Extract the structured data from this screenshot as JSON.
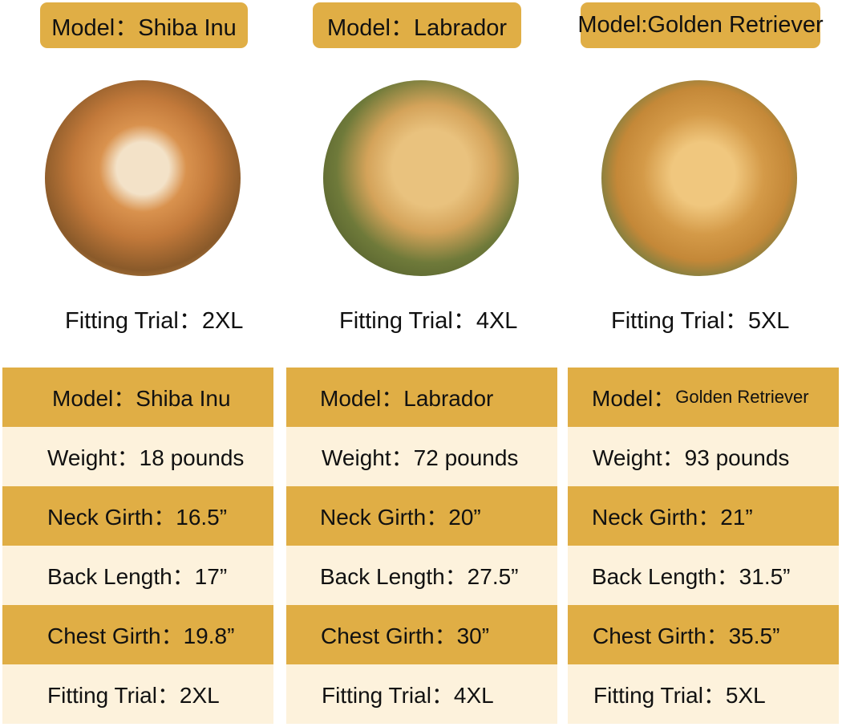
{
  "colors": {
    "gold": "#e0ae45",
    "cream": "#fdf2dc"
  },
  "dogs": [
    {
      "badge": "Model：Shiba Inu",
      "photo": "shiba-inu-photo",
      "trial": "Fitting Trial：2XL",
      "rows": [
        "Model：Shiba Inu",
        "Weight：18 pounds",
        "Neck Girth：16.5”",
        "Back Length：17”",
        "Chest Girth：19.8”",
        "Fitting Trial：2XL"
      ]
    },
    {
      "badge": "Model：Labrador",
      "photo": "labrador-photo",
      "trial": "Fitting Trial：4XL",
      "rows": [
        "Model：Labrador",
        "Weight：72 pounds",
        "Neck Girth：20”",
        "Back Length：27.5”",
        "Chest Girth：30”",
        "Fitting Trial：4XL"
      ]
    },
    {
      "badge": "Model:Golden Retriever",
      "photo": "golden-retriever-photo",
      "trial": "Fitting Trial：5XL",
      "rows": [
        "Model：Golden Retriever",
        "Weight：93 pounds",
        "Neck Girth：21”",
        "Back Length：31.5”",
        "Chest Girth：35.5”",
        "Fitting Trial：5XL"
      ]
    }
  ]
}
